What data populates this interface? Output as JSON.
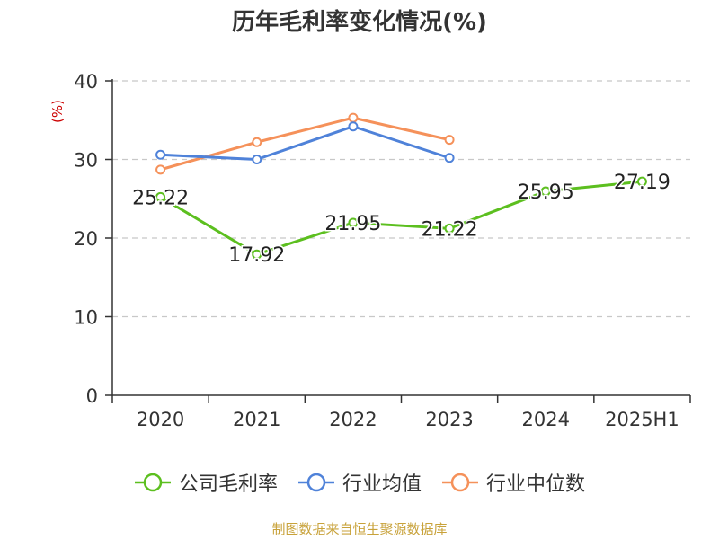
{
  "title": "历年毛利率变化情况(%)",
  "unit": "(%)",
  "source": "制图数据来自恒生聚源数据库",
  "chart_data": {
    "type": "line",
    "categories": [
      "2020",
      "2021",
      "2022",
      "2023",
      "2024",
      "2025H1"
    ],
    "ylim": [
      0,
      40
    ],
    "yticks": [
      0,
      10,
      20,
      30,
      40
    ],
    "grid": true,
    "legend_position": "bottom",
    "series": [
      {
        "name": "公司毛利率",
        "color": "#5cbf1f",
        "values": [
          25.22,
          17.92,
          21.95,
          21.22,
          25.95,
          27.19
        ],
        "labels": [
          "25.22",
          "17.92",
          "21.95",
          "21.22",
          "25.95",
          "27.19"
        ]
      },
      {
        "name": "行业均值",
        "color": "#4f82d9",
        "values": [
          30.6,
          30.0,
          34.2,
          30.2,
          null,
          null
        ]
      },
      {
        "name": "行业中位数",
        "color": "#f5915a",
        "values": [
          28.7,
          32.2,
          35.3,
          32.5,
          null,
          null
        ]
      }
    ]
  }
}
